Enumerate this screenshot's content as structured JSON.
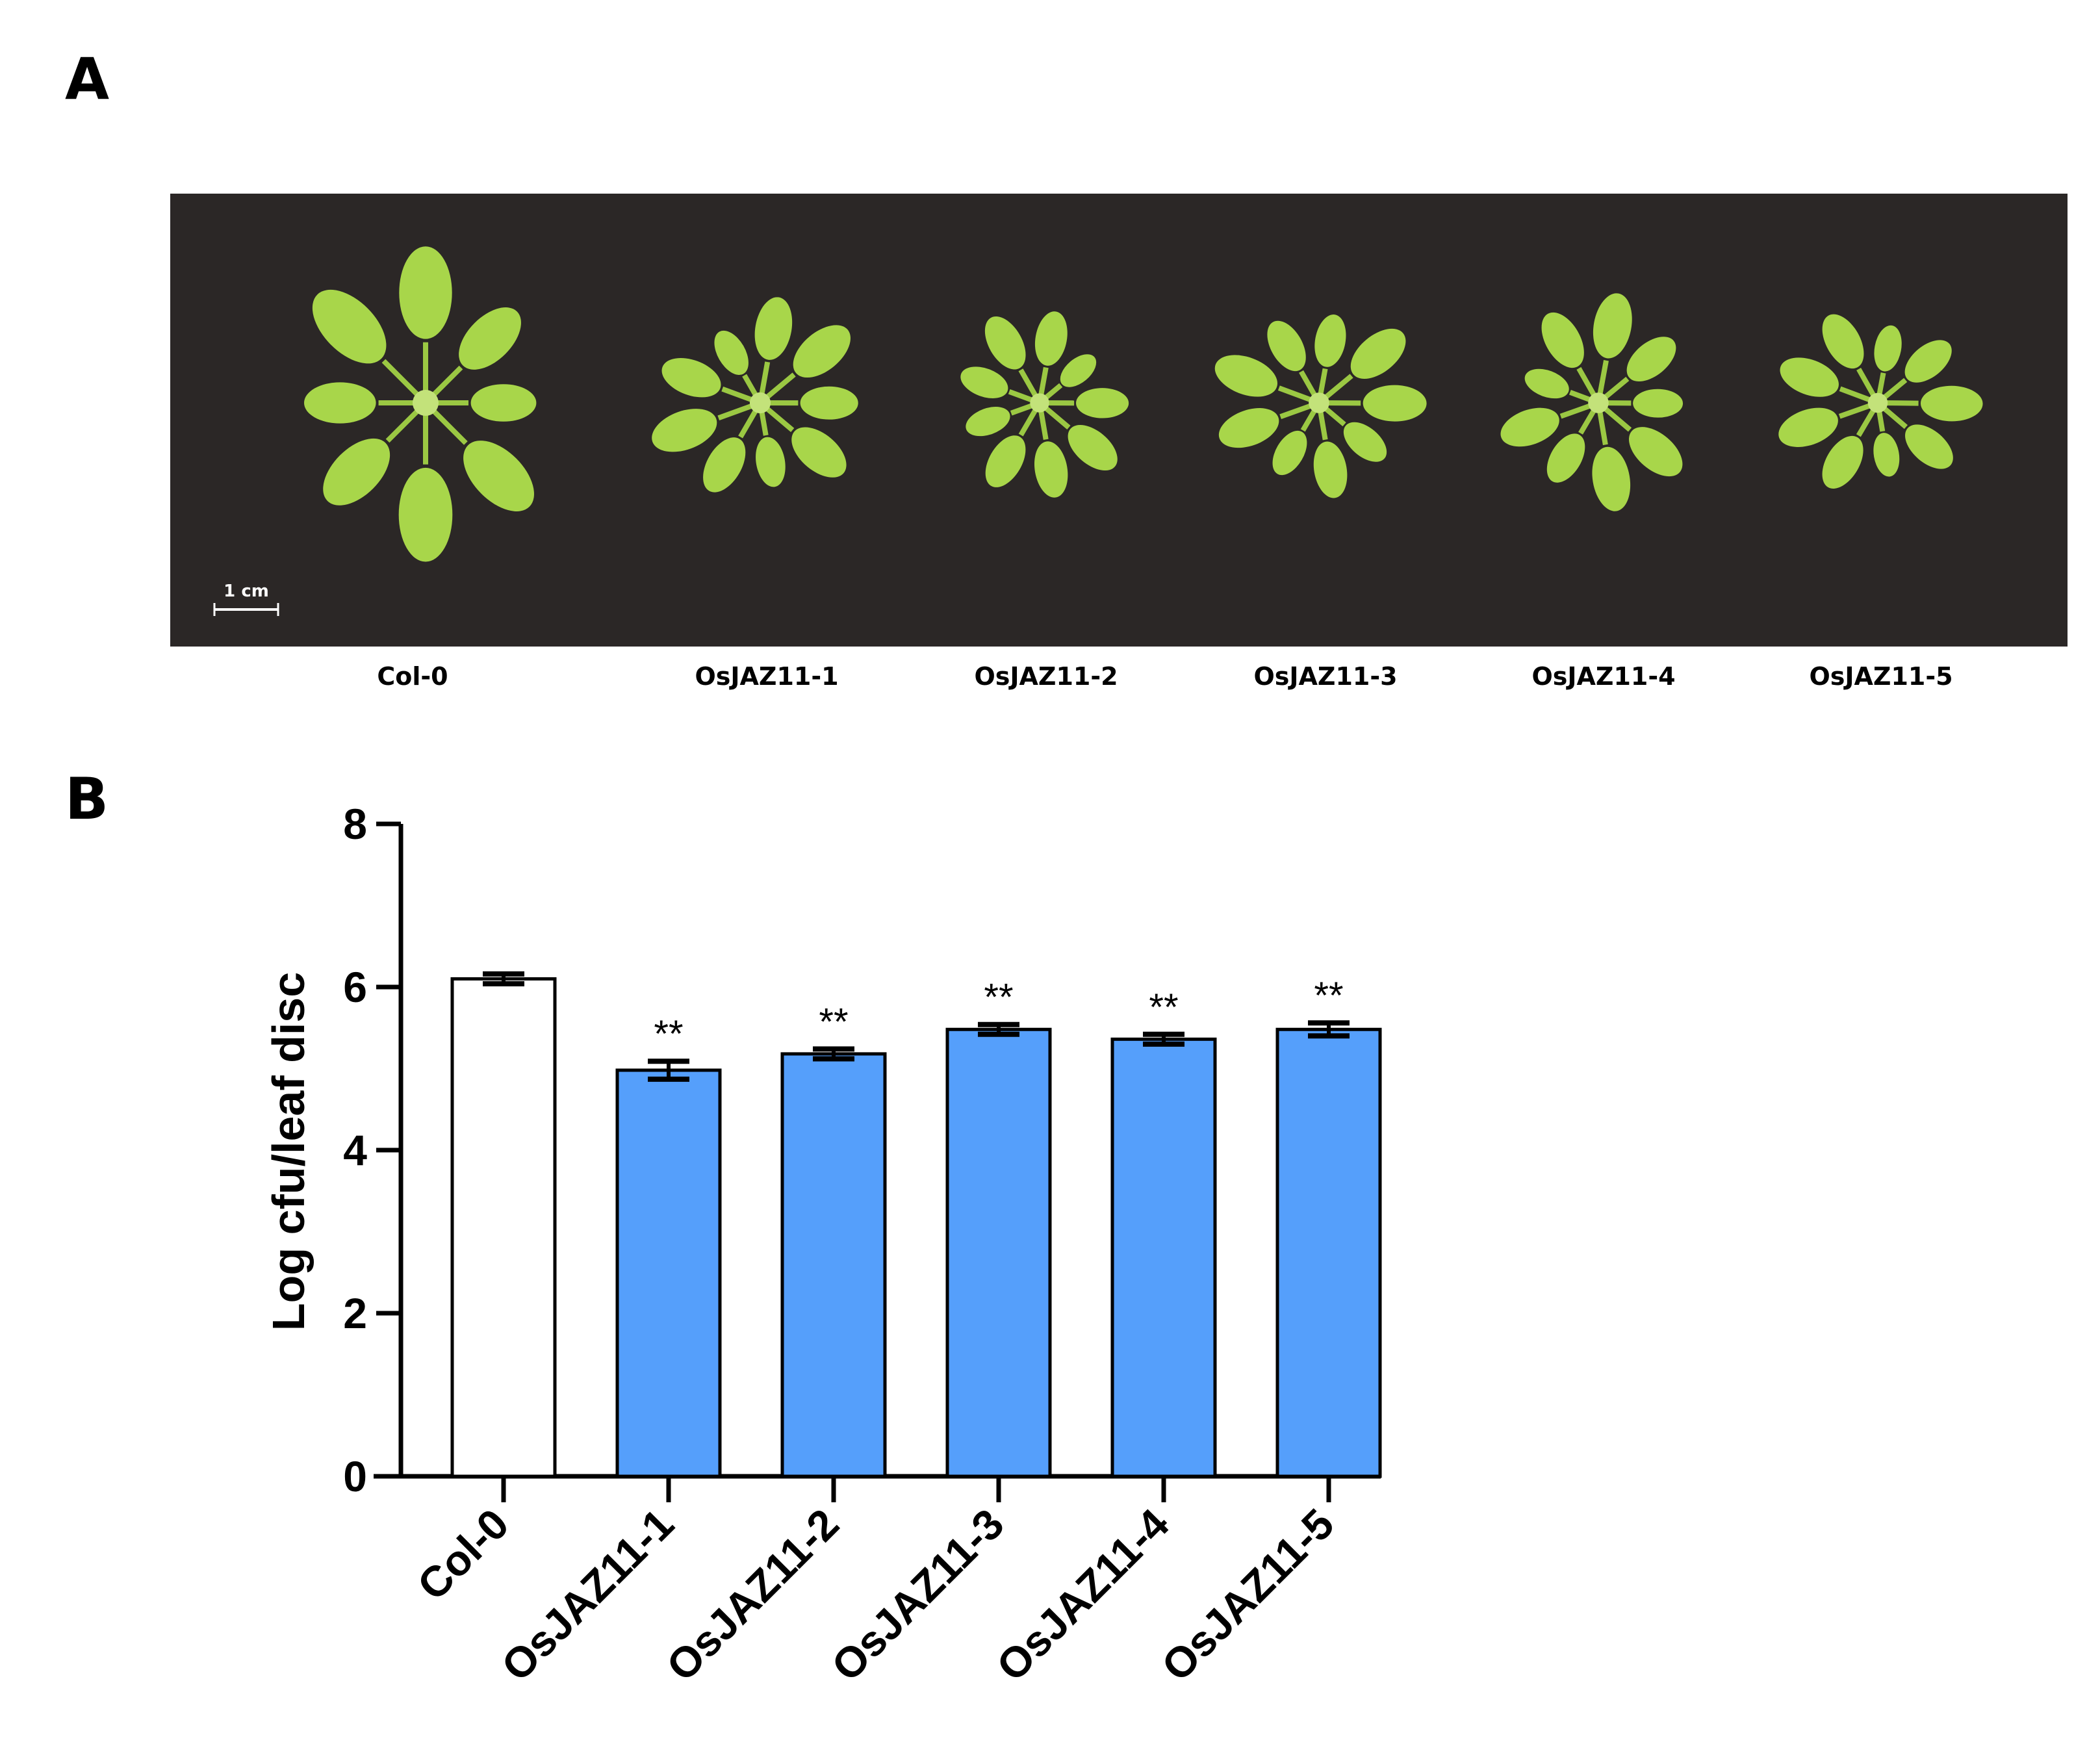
{
  "panel_a": {
    "letter": "A",
    "scale_bar_label": "1 cm",
    "background_color": "#2b2726",
    "leaf_color": "#a8d64a",
    "plants": [
      {
        "label": "Col-0",
        "size": 1.0
      },
      {
        "label": "OsJAZ11-1",
        "size": 0.72
      },
      {
        "label": "OsJAZ11-2",
        "size": 0.62
      },
      {
        "label": "OsJAZ11-3",
        "size": 0.7
      },
      {
        "label": "OsJAZ11-4",
        "size": 0.7
      },
      {
        "label": "OsJAZ11-5",
        "size": 0.66
      }
    ]
  },
  "panel_b": {
    "letter": "B"
  },
  "chart_data": {
    "type": "bar",
    "title": "",
    "xlabel": "",
    "ylabel": "Log cfu/leaf disc",
    "ylim": [
      0,
      8
    ],
    "yticks": [
      0,
      2,
      4,
      6,
      8
    ],
    "grid": false,
    "categories": [
      "Col-0",
      "OsJAZ11-1",
      "OsJAZ11-2",
      "OsJAZ11-3",
      "OsJAZ11-4",
      "OsJAZ11-5"
    ],
    "values": [
      6.1,
      4.98,
      5.18,
      5.48,
      5.36,
      5.48
    ],
    "errors": [
      0.06,
      0.11,
      0.06,
      0.06,
      0.06,
      0.08
    ],
    "significance": [
      "",
      "**",
      "**",
      "**",
      "**",
      "**"
    ],
    "bar_colors": [
      "#ffffff",
      "#559ffb",
      "#559ffb",
      "#559ffb",
      "#559ffb",
      "#559ffb"
    ]
  }
}
